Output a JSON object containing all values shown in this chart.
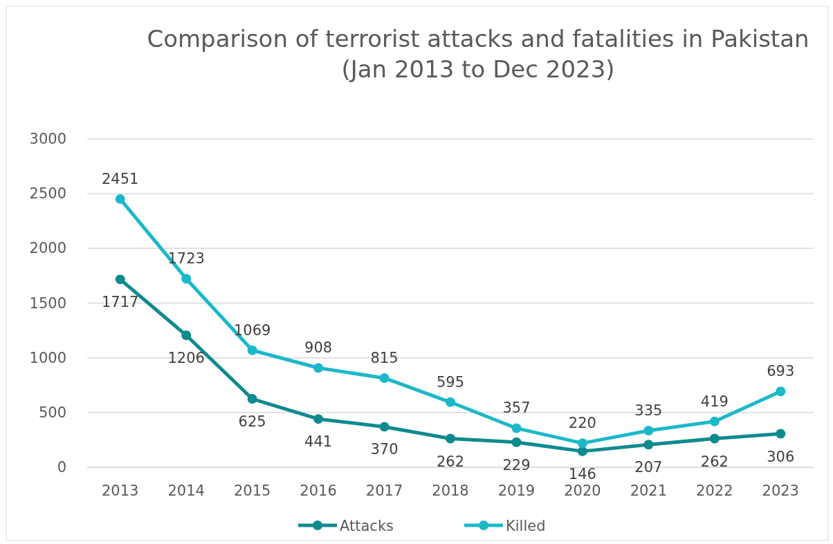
{
  "chart_data": {
    "type": "line",
    "title": "Comparison of terrorist attacks and fatalities in Pakistan\n(Jan 2013 to Dec 2023)",
    "categories": [
      "2013",
      "2014",
      "2015",
      "2016",
      "2017",
      "2018",
      "2019",
      "2020",
      "2021",
      "2022",
      "2023"
    ],
    "series": [
      {
        "name": "Attacks",
        "color": "#0e8a8f",
        "values": [
          1717,
          1206,
          625,
          441,
          370,
          262,
          229,
          146,
          207,
          262,
          306
        ]
      },
      {
        "name": "Killed",
        "color": "#1cb8c9",
        "values": [
          2451,
          1723,
          1069,
          908,
          815,
          595,
          357,
          220,
          335,
          419,
          693
        ]
      }
    ],
    "ylim": [
      0,
      3000
    ],
    "yticks": [
      0,
      500,
      1000,
      1500,
      2000,
      2500,
      3000
    ],
    "grid": "y",
    "legend": "bottom",
    "marker": "circle",
    "line_style": "solid",
    "data_labels": true
  }
}
